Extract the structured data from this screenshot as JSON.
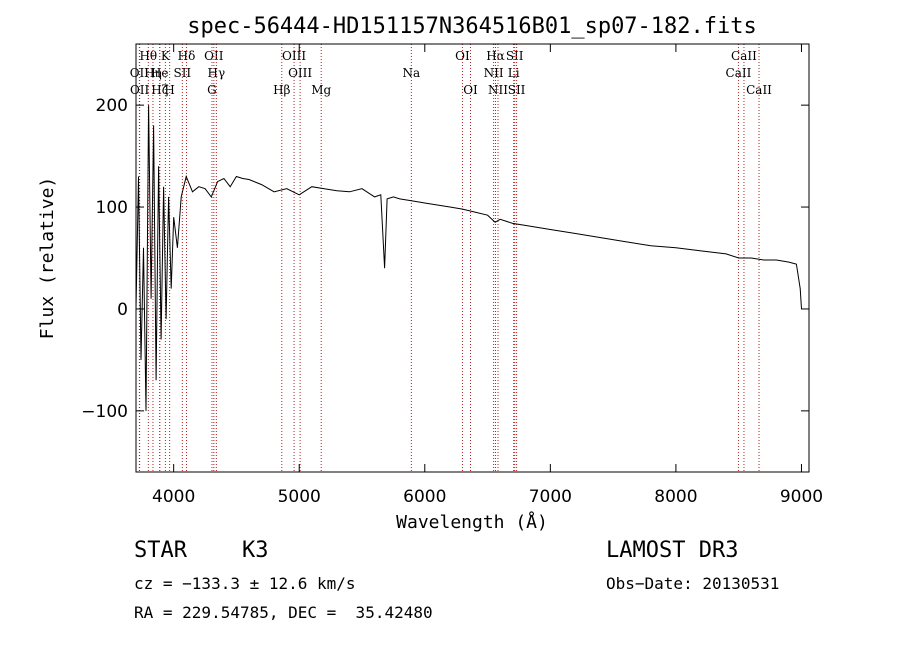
{
  "chart_data": {
    "type": "line",
    "title": "spec-56444-HD151157N364516B01_sp07-182.fits",
    "xlabel": "Wavelength (Å)",
    "ylabel": "Flux (relative)",
    "xlim": [
      3700,
      9060
    ],
    "ylim": [
      -160,
      260
    ],
    "xticks": [
      4000,
      5000,
      6000,
      7000,
      8000,
      9000
    ],
    "xtick_labels": [
      "4000",
      "5000",
      "6000",
      "7000",
      "8000",
      "9000"
    ],
    "yticks": [
      -100,
      0,
      100,
      200
    ],
    "ytick_labels": [
      "−100",
      "0",
      "100",
      "200"
    ],
    "grid": false,
    "series": [
      {
        "name": "flux",
        "color": "#000000",
        "x": [
          3700,
          3720,
          3740,
          3760,
          3780,
          3800,
          3820,
          3840,
          3860,
          3880,
          3900,
          3920,
          3940,
          3960,
          3980,
          4000,
          4030,
          4060,
          4100,
          4150,
          4200,
          4250,
          4300,
          4350,
          4400,
          4450,
          4500,
          4550,
          4600,
          4700,
          4800,
          4900,
          5000,
          5100,
          5200,
          5300,
          5400,
          5500,
          5600,
          5650,
          5680,
          5700,
          5750,
          5800,
          5900,
          6000,
          6100,
          6200,
          6300,
          6400,
          6500,
          6560,
          6600,
          6700,
          6800,
          7000,
          7200,
          7400,
          7600,
          7800,
          8000,
          8200,
          8400,
          8500,
          8600,
          8700,
          8800,
          8900,
          8960,
          8990,
          9000
        ],
        "y": [
          0,
          130,
          -50,
          60,
          -100,
          200,
          10,
          180,
          -70,
          140,
          -30,
          120,
          -10,
          110,
          20,
          90,
          60,
          110,
          130,
          115,
          120,
          118,
          110,
          125,
          128,
          120,
          130,
          128,
          127,
          122,
          115,
          118,
          112,
          120,
          118,
          116,
          115,
          118,
          110,
          112,
          40,
          108,
          110,
          108,
          106,
          104,
          102,
          100,
          98,
          95,
          92,
          85,
          88,
          84,
          82,
          78,
          74,
          70,
          66,
          62,
          60,
          57,
          54,
          50,
          50,
          48,
          48,
          46,
          44,
          20,
          0
        ]
      }
    ],
    "line_markers": [
      {
        "label": "Hθ",
        "x": 3798,
        "row": 0
      },
      {
        "label": "K",
        "x": 3934,
        "row": 0
      },
      {
        "label": "Hδ",
        "x": 4102,
        "row": 0
      },
      {
        "label": "OII",
        "x": 4320,
        "row": 0
      },
      {
        "label": "OIII",
        "x": 4959,
        "row": 0
      },
      {
        "label": "OI",
        "x": 6300,
        "row": 0
      },
      {
        "label": "Hα",
        "x": 6563,
        "row": 0
      },
      {
        "label": "SII",
        "x": 6716,
        "row": 0
      },
      {
        "label": "CaII",
        "x": 8542,
        "row": 0
      },
      {
        "label": "OII",
        "x": 3727,
        "row": 1
      },
      {
        "label": "Hη",
        "x": 3835,
        "row": 1
      },
      {
        "label": "He",
        "x": 3889,
        "row": 1
      },
      {
        "label": "SII",
        "x": 4069,
        "row": 1
      },
      {
        "label": "Hγ",
        "x": 4340,
        "row": 1
      },
      {
        "label": "OIII",
        "x": 5007,
        "row": 1
      },
      {
        "label": "NII",
        "x": 6548,
        "row": 1
      },
      {
        "label": "Li",
        "x": 6708,
        "row": 1
      },
      {
        "label": "CaII",
        "x": 8498,
        "row": 1
      },
      {
        "label": "OII",
        "x": 3729,
        "row": 2
      },
      {
        "label": "Hζ",
        "x": 3889,
        "row": 2
      },
      {
        "label": "H",
        "x": 3968,
        "row": 2
      },
      {
        "label": "G",
        "x": 4305,
        "row": 2
      },
      {
        "label": "Hβ",
        "x": 4861,
        "row": 2
      },
      {
        "label": "Mg",
        "x": 5175,
        "row": 2
      },
      {
        "label": "Na",
        "x": 5893,
        "row": 1
      },
      {
        "label": "OI",
        "x": 6364,
        "row": 2
      },
      {
        "label": "NII",
        "x": 6583,
        "row": 2
      },
      {
        "label": "SII",
        "x": 6731,
        "row": 2
      },
      {
        "label": "CaII",
        "x": 8662,
        "row": 2
      }
    ],
    "marker_color": "#b22222"
  },
  "info": {
    "object_class": "STAR",
    "subclass": "K3",
    "survey": "LAMOST DR3",
    "velocity": "cz = −133.3 ± 12.6 km/s",
    "obs_date": "Obs−Date: 20130531",
    "coords": "RA = 229.54785, DEC =  35.42480"
  }
}
